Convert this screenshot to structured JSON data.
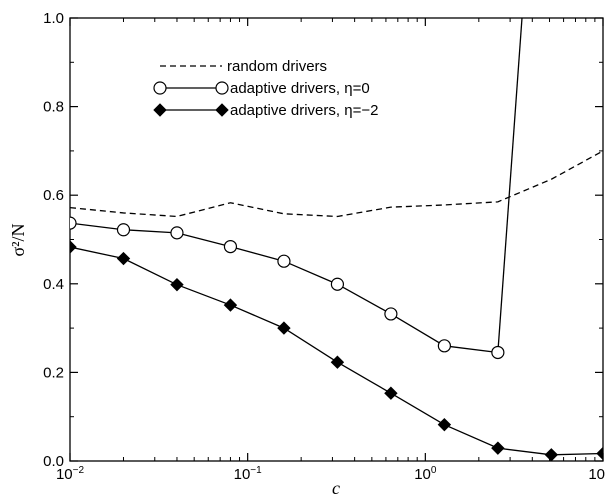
{
  "chart_data": {
    "type": "line",
    "xlabel": "c",
    "ylabel": "σ²/N",
    "xscale": "log",
    "xlim": [
      0.01,
      10
    ],
    "ylim": [
      0,
      1.0
    ],
    "grid": false,
    "legend": "top-left",
    "x_tick_labels": [
      {
        "base": "10",
        "exp": "−2",
        "value": 0.01
      },
      {
        "base": "10",
        "exp": "−1",
        "value": 0.1
      },
      {
        "base": "10",
        "exp": "0",
        "value": 1
      },
      {
        "base": "10",
        "exp": "",
        "value": 10
      }
    ],
    "y_tick_labels": [
      "0.0",
      "0.2",
      "0.4",
      "0.6",
      "0.8",
      "1.0"
    ],
    "y_ticks": [
      0,
      0.2,
      0.4,
      0.6,
      0.8,
      1.0
    ],
    "series": [
      {
        "name": "random drivers",
        "style": "dashed",
        "marker": "none",
        "x": [
          0.01,
          0.02,
          0.04,
          0.08,
          0.16,
          0.32,
          0.64,
          1.28,
          2.56,
          5.12,
          10
        ],
        "y": [
          0.572,
          0.56,
          0.552,
          0.583,
          0.558,
          0.552,
          0.573,
          0.578,
          0.585,
          0.636,
          0.7
        ]
      },
      {
        "name": "adaptive drivers, η=0",
        "style": "solid",
        "marker": "open-circle",
        "x": [
          0.01,
          0.02,
          0.04,
          0.08,
          0.16,
          0.32,
          0.64,
          1.28,
          2.56
        ],
        "y": [
          0.537,
          0.522,
          0.515,
          0.484,
          0.451,
          0.399,
          0.332,
          0.26,
          0.245
        ],
        "continuation": {
          "x": [
            2.56,
            3.5
          ],
          "y": [
            0.245,
            1.0
          ]
        }
      },
      {
        "name": "adaptive drivers, η=−2",
        "style": "solid",
        "marker": "filled-diamond",
        "x": [
          0.01,
          0.02,
          0.04,
          0.08,
          0.16,
          0.32,
          0.64,
          1.28,
          2.56,
          5.12,
          10
        ],
        "y": [
          0.483,
          0.457,
          0.398,
          0.352,
          0.3,
          0.223,
          0.153,
          0.082,
          0.029,
          0.014,
          0.017
        ]
      }
    ]
  }
}
